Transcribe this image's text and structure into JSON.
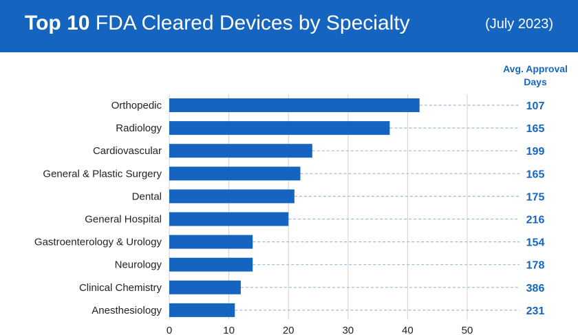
{
  "header": {
    "title_bold": "Top 10",
    "title_rest": "FDA Cleared Devices by Specialty",
    "date": "(July 2023)"
  },
  "colors": {
    "header_bg": "#1565c0",
    "bar": "#1565c0",
    "value_text": "#1565c0",
    "grid": "#d0d0d0",
    "leader": "#9ab8e0"
  },
  "chart_data": {
    "type": "bar",
    "orientation": "horizontal",
    "title": "Top 10 FDA Cleared Devices by Specialty",
    "categories": [
      "Orthopedic",
      "Radiology",
      "Cardiovascular",
      "General & Plastic Surgery",
      "Dental",
      "General Hospital",
      "Gastroenterology & Urology",
      "Neurology",
      "Clinical Chemistry",
      "Anesthesiology"
    ],
    "values": [
      42,
      37,
      24,
      22,
      21,
      20,
      14,
      14,
      12,
      11
    ],
    "xlim": [
      0,
      50
    ],
    "xticks": [
      0,
      10,
      20,
      30,
      40,
      50
    ],
    "grid": true,
    "annotation_header": [
      "Avg. Approval",
      "Days"
    ],
    "annotations": [
      107,
      165,
      199,
      165,
      175,
      216,
      154,
      178,
      386,
      231
    ]
  }
}
